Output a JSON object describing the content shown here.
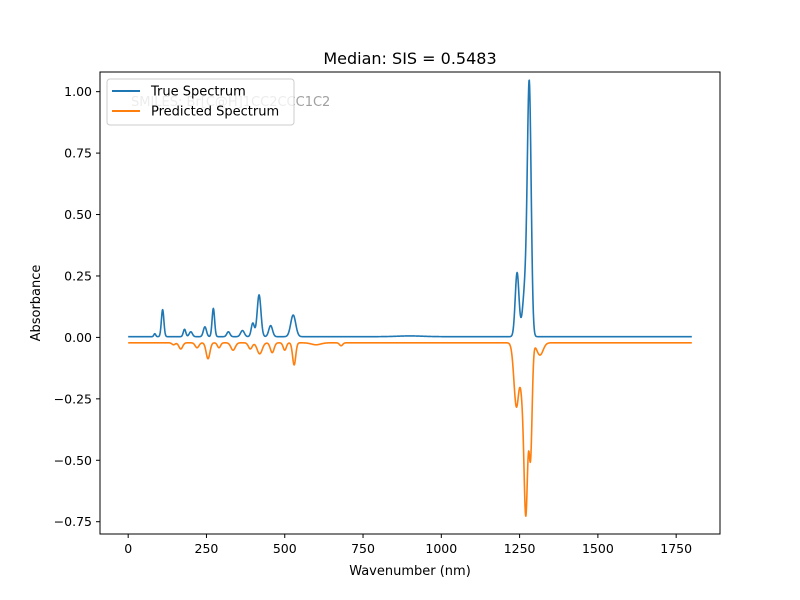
{
  "chart_data": {
    "type": "line",
    "title": "Median: SIS = 0.5483",
    "xlabel": "Wavenumber (nm)",
    "ylabel": "Absorbance",
    "xlim": [
      -90,
      1890
    ],
    "ylim": [
      -0.8,
      1.08
    ],
    "xticks": [
      0,
      250,
      500,
      750,
      1000,
      1250,
      1500,
      1750
    ],
    "yticks": [
      -0.75,
      -0.5,
      -0.25,
      0.0,
      0.25,
      0.5,
      0.75,
      1.0
    ],
    "grid": false,
    "legend_position": "top-left",
    "annotation": "SMILES: Br[C@H]1CC2CCC1C2",
    "series": [
      {
        "name": "True Spectrum",
        "color": "#1f77b4",
        "baseline": 0.003,
        "peaks": [
          {
            "x": 85,
            "h": 0.012,
            "w": 3
          },
          {
            "x": 110,
            "h": 0.11,
            "w": 4
          },
          {
            "x": 180,
            "h": 0.03,
            "w": 4
          },
          {
            "x": 200,
            "h": 0.02,
            "w": 5
          },
          {
            "x": 245,
            "h": 0.04,
            "w": 5
          },
          {
            "x": 272,
            "h": 0.115,
            "w": 4
          },
          {
            "x": 320,
            "h": 0.02,
            "w": 5
          },
          {
            "x": 365,
            "h": 0.025,
            "w": 6
          },
          {
            "x": 398,
            "h": 0.055,
            "w": 5
          },
          {
            "x": 418,
            "h": 0.17,
            "w": 6
          },
          {
            "x": 455,
            "h": 0.045,
            "w": 6
          },
          {
            "x": 527,
            "h": 0.088,
            "w": 8
          },
          {
            "x": 900,
            "h": 0.003,
            "w": 40
          },
          {
            "x": 1242,
            "h": 0.26,
            "w": 6
          },
          {
            "x": 1268,
            "h": 0.2,
            "w": 8
          },
          {
            "x": 1281,
            "h": 0.99,
            "w": 6
          }
        ]
      },
      {
        "name": "Predicted Spectrum",
        "color": "#ff7f0e",
        "baseline": -0.022,
        "peaks": [
          {
            "x": 145,
            "h": -0.008,
            "w": 5
          },
          {
            "x": 168,
            "h": -0.025,
            "w": 6
          },
          {
            "x": 220,
            "h": -0.02,
            "w": 6
          },
          {
            "x": 255,
            "h": -0.065,
            "w": 6
          },
          {
            "x": 290,
            "h": -0.02,
            "w": 5
          },
          {
            "x": 335,
            "h": -0.03,
            "w": 7
          },
          {
            "x": 390,
            "h": -0.025,
            "w": 6
          },
          {
            "x": 420,
            "h": -0.045,
            "w": 8
          },
          {
            "x": 460,
            "h": -0.04,
            "w": 6
          },
          {
            "x": 500,
            "h": -0.03,
            "w": 5
          },
          {
            "x": 530,
            "h": -0.09,
            "w": 5
          },
          {
            "x": 600,
            "h": -0.008,
            "w": 15
          },
          {
            "x": 680,
            "h": -0.012,
            "w": 5
          },
          {
            "x": 1240,
            "h": -0.26,
            "w": 8
          },
          {
            "x": 1270,
            "h": -0.68,
            "w": 6
          },
          {
            "x": 1258,
            "h": -0.15,
            "w": 6
          },
          {
            "x": 1285,
            "h": -0.45,
            "w": 5
          },
          {
            "x": 1315,
            "h": -0.05,
            "w": 10
          }
        ]
      }
    ],
    "x_range": [
      0,
      1800
    ]
  }
}
